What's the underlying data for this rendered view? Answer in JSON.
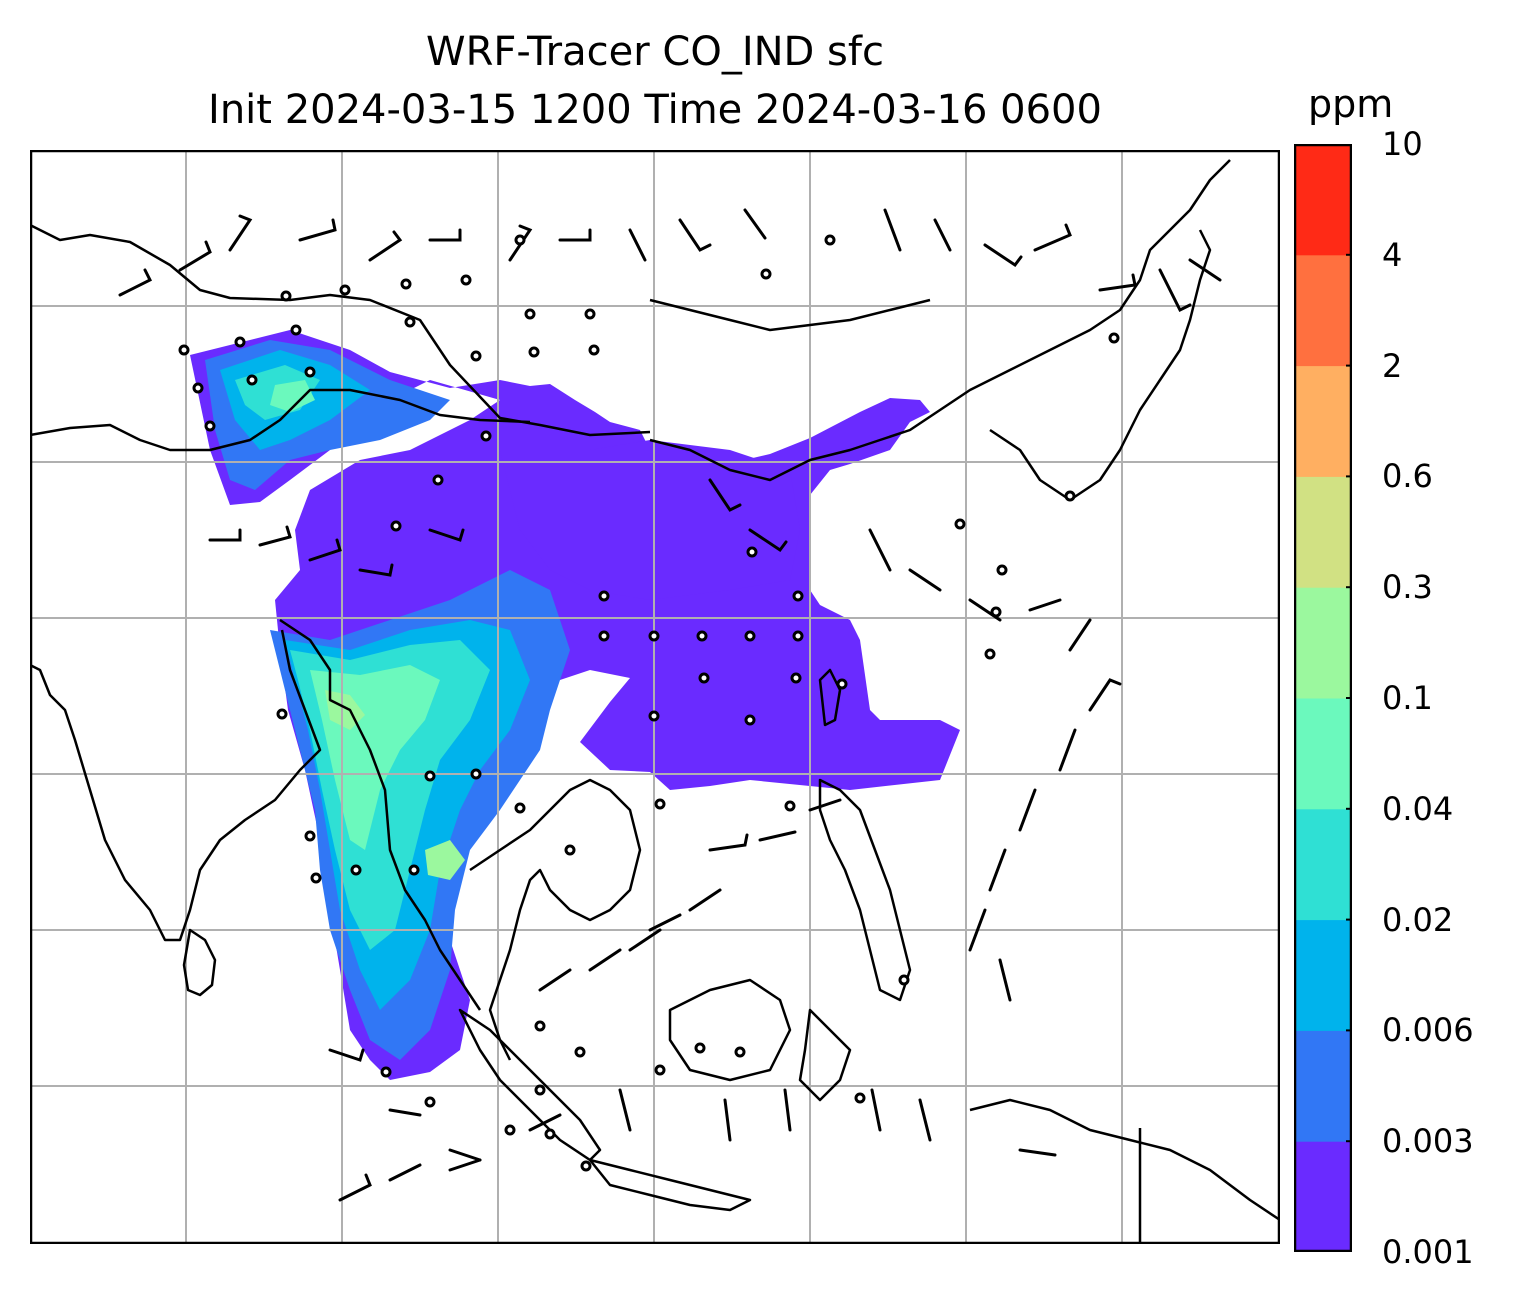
{
  "title": {
    "line1": "WRF-Tracer CO_IND sfc",
    "line2": "Init 2024-03-15 1200 Time 2024-03-16 0600"
  },
  "colorbar": {
    "unit": "ppm",
    "levels": [
      "0.001",
      "0.003",
      "0.006",
      "0.02",
      "0.04",
      "0.1",
      "0.3",
      "0.6",
      "2",
      "4",
      "10"
    ],
    "colors": [
      "#6a2bff",
      "#3177f5",
      "#00b3ec",
      "#2fe0d4",
      "#6bf9bd",
      "#9bf89e",
      "#d1e183",
      "#ffaf61",
      "#ff703f",
      "#ff2a16"
    ]
  },
  "map": {
    "gridlines": true,
    "tracer_colors": {
      "lowest": "#6a2bff",
      "low": "#3177f5",
      "mid": "#00b3ec",
      "midhigh": "#2fe0d4",
      "high": "#6bf9bd",
      "higher": "#9bf89e"
    }
  }
}
